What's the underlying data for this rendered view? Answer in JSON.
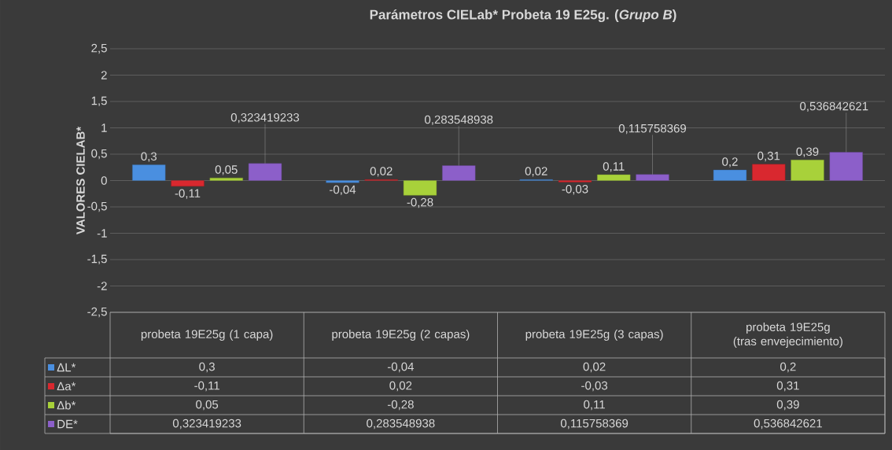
{
  "chart_data": {
    "type": "bar",
    "title": "Parámetros CIELab* Probeta 19 E25g. (*Grupo B*)",
    "ylabel": "VALORES CIELAB*",
    "categories": [
      "probeta 19E25g (1 capa)",
      "probeta 19E25g (2 capas)",
      "probeta 19E25g (3 capas)",
      "probeta 19E25g (tras envejecimiento)"
    ],
    "series": [
      {
        "name": "ΔL*",
        "color": "#4a8fe0",
        "values": [
          0.3,
          -0.04,
          0.02,
          0.2
        ],
        "value_labels": [
          "0,3",
          "-0,04",
          "0,02",
          "0,2"
        ]
      },
      {
        "name": "Δa*",
        "color": "#d9282f",
        "values": [
          -0.11,
          0.02,
          -0.03,
          0.31
        ],
        "value_labels": [
          "-0,11",
          "0,02",
          "-0,03",
          "0,31"
        ]
      },
      {
        "name": "Δb*",
        "color": "#a8d13a",
        "values": [
          0.05,
          -0.28,
          0.11,
          0.39
        ],
        "value_labels": [
          "0,05",
          "-0,28",
          "0,11",
          "0,39"
        ]
      },
      {
        "name": "DE*",
        "color": "#8c5fc9",
        "values": [
          0.323419233,
          0.283548938,
          0.115758369,
          0.536842621
        ],
        "value_labels": [
          "0,323419233",
          "0,283548938",
          "0,115758369",
          "0,536842621"
        ]
      }
    ],
    "ylim": [
      -2.5,
      2.5
    ],
    "yticks": [
      {
        "value": -2.5,
        "label": "-2,5"
      },
      -2,
      {
        "value": -1.5,
        "label": "-1,5"
      },
      -1,
      {
        "value": -0.5,
        "label": "-0,5"
      },
      0,
      {
        "value": 0.5,
        "label": "0,5"
      },
      1,
      {
        "value": 1.5,
        "label": "1,5"
      },
      2,
      {
        "value": 2.5,
        "label": "2,5"
      }
    ],
    "grid": "y",
    "legend": "bottom"
  }
}
